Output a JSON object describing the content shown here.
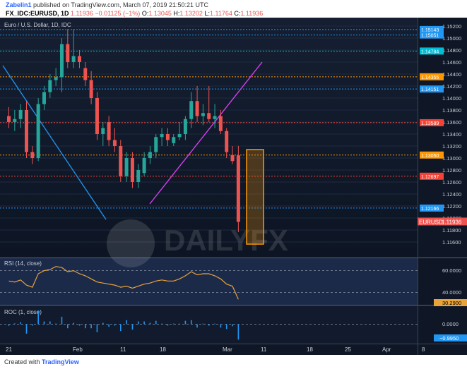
{
  "header": {
    "username": "Zabelin1",
    "published_text": "published on TradingView.com, March 07, 2019 21:50:21 UTC",
    "symbol": "FX_IDC:EURUSD, 1D",
    "last": "1.11936",
    "change": "−0.01125 (−1%)",
    "o_label": "O:",
    "o_value": "1.13045",
    "h_label": "H:",
    "h_value": "1.13202",
    "l_label": "L:",
    "l_value": "1.11764",
    "c_label": "C:",
    "c_value": "1.11936"
  },
  "main_pane": {
    "title": "Euro / U.S. Dollar, 1D, IDC",
    "price_ticks": [
      "1.15200",
      "1.15000",
      "1.14800",
      "1.14600",
      "1.14400",
      "1.14200",
      "1.14000",
      "1.13800",
      "1.13600",
      "1.13400",
      "1.13200",
      "1.13000",
      "1.12800",
      "1.12600",
      "1.12400",
      "1.12200",
      "1.12000",
      "1.11800",
      "1.11600"
    ],
    "levels": [
      {
        "label": "1.15143",
        "color": "#2196f3"
      },
      {
        "label": "1.15051",
        "color": "#2196f3"
      },
      {
        "label": "1.14784",
        "color": "#00bcd4"
      },
      {
        "label": "1.14355",
        "color": "#ff9800"
      },
      {
        "label": "1.14151",
        "color": "#2196f3"
      },
      {
        "label": "1.13589",
        "color": "#f44336"
      },
      {
        "label": "1.13050",
        "color": "#ff9800"
      },
      {
        "label": "1.12697",
        "color": "#f44336"
      },
      {
        "label": "1.12166",
        "color": "#2196f3"
      }
    ],
    "price_tag": {
      "label": "EURUSD",
      "value": "1.11936"
    },
    "watermark": "DAILYFX"
  },
  "rsi_pane": {
    "title": "RSI (14, close)",
    "ticks": [
      "60.0000",
      "40.0000"
    ],
    "current": "30.2900"
  },
  "roc_pane": {
    "title": "ROC (1, close)",
    "ticks": [
      "0.0000"
    ],
    "current": "−0.9950"
  },
  "time_axis": [
    "21",
    "Feb",
    "11",
    "18",
    "Mar",
    "11",
    "18",
    "25",
    "Apr",
    "8"
  ],
  "footer": {
    "created_with": "Created with",
    "brand": "TradingView"
  },
  "chart_data": {
    "type": "candlestick",
    "title": "Euro / U.S. Dollar, 1D, IDC",
    "bull_color": "#26a69a",
    "bear_color": "#ef5350",
    "candles": [
      {
        "o": 1.137,
        "h": 1.1385,
        "l": 1.135,
        "c": 1.136
      },
      {
        "o": 1.136,
        "h": 1.138,
        "l": 1.1345,
        "c": 1.1365
      },
      {
        "o": 1.1365,
        "h": 1.139,
        "l": 1.135,
        "c": 1.138
      },
      {
        "o": 1.138,
        "h": 1.1395,
        "l": 1.13,
        "c": 1.131
      },
      {
        "o": 1.131,
        "h": 1.132,
        "l": 1.129,
        "c": 1.13
      },
      {
        "o": 1.13,
        "h": 1.14,
        "l": 1.1295,
        "c": 1.139
      },
      {
        "o": 1.139,
        "h": 1.142,
        "l": 1.138,
        "c": 1.141
      },
      {
        "o": 1.141,
        "h": 1.144,
        "l": 1.14,
        "c": 1.143
      },
      {
        "o": 1.143,
        "h": 1.145,
        "l": 1.142,
        "c": 1.1435
      },
      {
        "o": 1.1435,
        "h": 1.15,
        "l": 1.141,
        "c": 1.149
      },
      {
        "o": 1.149,
        "h": 1.1515,
        "l": 1.145,
        "c": 1.146
      },
      {
        "o": 1.146,
        "h": 1.1515,
        "l": 1.145,
        "c": 1.147
      },
      {
        "o": 1.147,
        "h": 1.148,
        "l": 1.145,
        "c": 1.146
      },
      {
        "o": 1.145,
        "h": 1.146,
        "l": 1.142,
        "c": 1.143
      },
      {
        "o": 1.143,
        "h": 1.1445,
        "l": 1.139,
        "c": 1.14
      },
      {
        "o": 1.14,
        "h": 1.141,
        "l": 1.133,
        "c": 1.134
      },
      {
        "o": 1.134,
        "h": 1.136,
        "l": 1.132,
        "c": 1.135
      },
      {
        "o": 1.136,
        "h": 1.137,
        "l": 1.132,
        "c": 1.133
      },
      {
        "o": 1.133,
        "h": 1.135,
        "l": 1.131,
        "c": 1.132
      },
      {
        "o": 1.132,
        "h": 1.133,
        "l": 1.126,
        "c": 1.127
      },
      {
        "o": 1.127,
        "h": 1.131,
        "l": 1.126,
        "c": 1.13
      },
      {
        "o": 1.13,
        "h": 1.131,
        "l": 1.125,
        "c": 1.126
      },
      {
        "o": 1.126,
        "h": 1.129,
        "l": 1.125,
        "c": 1.128
      },
      {
        "o": 1.1275,
        "h": 1.131,
        "l": 1.127,
        "c": 1.13
      },
      {
        "o": 1.13,
        "h": 1.132,
        "l": 1.129,
        "c": 1.131
      },
      {
        "o": 1.131,
        "h": 1.134,
        "l": 1.13,
        "c": 1.1335
      },
      {
        "o": 1.1335,
        "h": 1.135,
        "l": 1.132,
        "c": 1.134
      },
      {
        "o": 1.134,
        "h": 1.135,
        "l": 1.132,
        "c": 1.133
      },
      {
        "o": 1.1325,
        "h": 1.134,
        "l": 1.132,
        "c": 1.1335
      },
      {
        "o": 1.1335,
        "h": 1.136,
        "l": 1.133,
        "c": 1.134
      },
      {
        "o": 1.134,
        "h": 1.137,
        "l": 1.133,
        "c": 1.1365
      },
      {
        "o": 1.1365,
        "h": 1.141,
        "l": 1.135,
        "c": 1.1395
      },
      {
        "o": 1.1395,
        "h": 1.142,
        "l": 1.136,
        "c": 1.137
      },
      {
        "o": 1.137,
        "h": 1.139,
        "l": 1.1355,
        "c": 1.1375
      },
      {
        "o": 1.1375,
        "h": 1.142,
        "l": 1.136,
        "c": 1.1365
      },
      {
        "o": 1.1365,
        "h": 1.139,
        "l": 1.135,
        "c": 1.137
      },
      {
        "o": 1.137,
        "h": 1.138,
        "l": 1.134,
        "c": 1.1345
      },
      {
        "o": 1.1345,
        "h": 1.135,
        "l": 1.13,
        "c": 1.131
      },
      {
        "o": 1.1305,
        "h": 1.132,
        "l": 1.129,
        "c": 1.1295
      },
      {
        "o": 1.13045,
        "h": 1.13202,
        "l": 1.11764,
        "c": 1.11936
      }
    ],
    "rsi": [
      48,
      47,
      49,
      44,
      42,
      55,
      58,
      59,
      62,
      61,
      57,
      58,
      55,
      53,
      50,
      47,
      46,
      45,
      44,
      42,
      43,
      41,
      43,
      45,
      46,
      48,
      49,
      48,
      48,
      50,
      53,
      57,
      54,
      55,
      55,
      53,
      50,
      45,
      43,
      30.29
    ],
    "roc": [
      -0.1,
      0.05,
      0.13,
      -0.61,
      -0.09,
      0.88,
      0.18,
      0.18,
      0.04,
      0.48,
      -0.26,
      0.09,
      -0.09,
      -0.26,
      -0.26,
      -0.52,
      0.09,
      -0.17,
      -0.09,
      -0.44,
      0.26,
      -0.35,
      0.18,
      0.18,
      0.09,
      0.22,
      0.04,
      -0.09,
      0.04,
      0.04,
      0.22,
      0.26,
      -0.22,
      0.04,
      -0.09,
      0.04,
      -0.22,
      -0.31,
      -0.13,
      -0.995
    ]
  }
}
